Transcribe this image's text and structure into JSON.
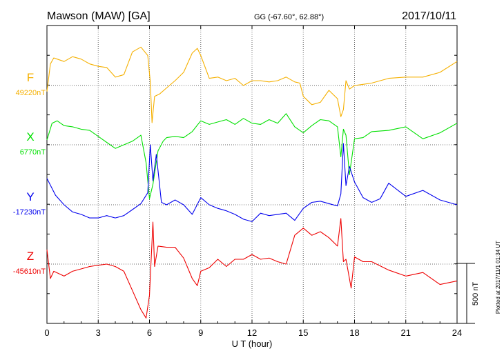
{
  "header": {
    "station": "Mawson (MAW)  [GA]",
    "coords": "GG (-67.60°,  62.88°)",
    "date": "2017/10/11"
  },
  "plotted_note": "Plotted at 2017/11/1 01:34 UT",
  "scale_label": "500 nT",
  "colors": {
    "F": "#f5b000",
    "X": "#00e000",
    "Y": "#0000ee",
    "Z": "#ee0000"
  },
  "chart_data": {
    "type": "line",
    "title": "Mawson (MAW)  [GA]",
    "xlabel": "U T (hour)",
    "xlim": [
      0,
      24
    ],
    "xticks": [
      0,
      3,
      6,
      9,
      12,
      15,
      18,
      21,
      24
    ],
    "grid": true,
    "scale_bar_nT": 500,
    "series": [
      {
        "name": "F",
        "baseline_label": "49220nT",
        "baseline_nT": 49220,
        "x": [
          0,
          0.2,
          0.4,
          0.6,
          1,
          1.5,
          2,
          2.5,
          3,
          3.5,
          4,
          4.5,
          5,
          5.5,
          5.9,
          6.05,
          6.15,
          6.3,
          6.6,
          7,
          7.5,
          8,
          8.5,
          8.8,
          9,
          9.5,
          10,
          10.5,
          11,
          11.5,
          12,
          12.5,
          13,
          13.5,
          14,
          14.5,
          14.8,
          15,
          15.5,
          16,
          16.5,
          17,
          17.2,
          17.35,
          17.5,
          17.7,
          18,
          18.5,
          19,
          20,
          21,
          22,
          23,
          24
        ],
        "y": [
          -50,
          180,
          230,
          220,
          200,
          240,
          220,
          180,
          160,
          150,
          70,
          90,
          280,
          320,
          250,
          30,
          -310,
          -90,
          -70,
          -20,
          40,
          110,
          270,
          310,
          250,
          60,
          70,
          40,
          60,
          0,
          40,
          40,
          30,
          40,
          70,
          30,
          20,
          -90,
          -160,
          -140,
          -40,
          -110,
          -260,
          -200,
          40,
          -30,
          0,
          10,
          20,
          60,
          70,
          70,
          110,
          200
        ]
      },
      {
        "name": "X",
        "baseline_label": "6770nT",
        "baseline_nT": 6770,
        "x": [
          0,
          0.3,
          0.6,
          1,
          1.5,
          2,
          2.5,
          3,
          3.5,
          4,
          4.5,
          5,
          5.5,
          5.8,
          6,
          6.2,
          6.5,
          6.8,
          7,
          7.5,
          8,
          8.5,
          9,
          9.5,
          10,
          10.5,
          11,
          11.5,
          12,
          12.5,
          13,
          13.5,
          14,
          14.5,
          15,
          15.5,
          16,
          16.5,
          17,
          17.2,
          17.35,
          17.5,
          17.7,
          18,
          18.5,
          19,
          20,
          21,
          22,
          23,
          24
        ],
        "y": [
          40,
          180,
          200,
          160,
          150,
          130,
          120,
          70,
          20,
          -30,
          0,
          30,
          80,
          -150,
          -450,
          -330,
          -50,
          30,
          60,
          70,
          60,
          110,
          200,
          170,
          190,
          210,
          170,
          220,
          180,
          170,
          210,
          180,
          260,
          150,
          100,
          160,
          210,
          200,
          150,
          -100,
          130,
          80,
          -250,
          50,
          60,
          110,
          120,
          150,
          50,
          100,
          180
        ]
      },
      {
        "name": "Y",
        "baseline_label": "-17230nT",
        "baseline_nT": -17230,
        "x": [
          0,
          0.5,
          1,
          1.5,
          2,
          2.5,
          3,
          3.5,
          4,
          4.5,
          5,
          5.5,
          5.9,
          6.05,
          6.2,
          6.4,
          6.7,
          7,
          7.5,
          8,
          8.5,
          9,
          9.5,
          10,
          10.5,
          11,
          11.5,
          12,
          12.5,
          13,
          13.5,
          14,
          14.5,
          15,
          15.5,
          16,
          16.5,
          17,
          17.2,
          17.35,
          17.5,
          17.7,
          18,
          18.5,
          19,
          19.5,
          20,
          21,
          22,
          23,
          24
        ],
        "y": [
          220,
          80,
          0,
          -60,
          -80,
          -110,
          -110,
          -90,
          -110,
          -90,
          -40,
          10,
          100,
          500,
          200,
          420,
          20,
          0,
          40,
          0,
          -80,
          60,
          0,
          -30,
          -50,
          -80,
          -120,
          -140,
          -70,
          -90,
          -80,
          -70,
          -130,
          -30,
          20,
          30,
          10,
          -10,
          90,
          510,
          160,
          320,
          190,
          60,
          20,
          50,
          180,
          70,
          120,
          40,
          0
        ]
      },
      {
        "name": "Z",
        "baseline_label": "-45610nT",
        "baseline_nT": -45610,
        "x": [
          0,
          0.2,
          0.4,
          0.7,
          1,
          1.5,
          2,
          2.5,
          3,
          3.5,
          4,
          4.5,
          5,
          5.5,
          5.8,
          6,
          6.2,
          6.3,
          6.5,
          7,
          7.5,
          8,
          8.5,
          8.8,
          9,
          9.5,
          10,
          10.5,
          11,
          11.5,
          12,
          12.5,
          13,
          13.5,
          14,
          14.5,
          15,
          15.5,
          16,
          16.5,
          17,
          17.2,
          17.35,
          17.5,
          17.8,
          18,
          18.5,
          19,
          20,
          21,
          22,
          23,
          24
        ],
        "y": [
          120,
          -120,
          -60,
          -80,
          -100,
          -60,
          -40,
          -20,
          -10,
          0,
          -20,
          -60,
          -220,
          -380,
          -450,
          -260,
          350,
          -20,
          150,
          140,
          140,
          50,
          -120,
          -180,
          -60,
          -30,
          40,
          -20,
          40,
          40,
          80,
          40,
          50,
          20,
          0,
          240,
          300,
          240,
          270,
          220,
          150,
          380,
          20,
          40,
          -200,
          60,
          20,
          20,
          -50,
          -100,
          -70,
          -170,
          -140
        ]
      }
    ]
  }
}
